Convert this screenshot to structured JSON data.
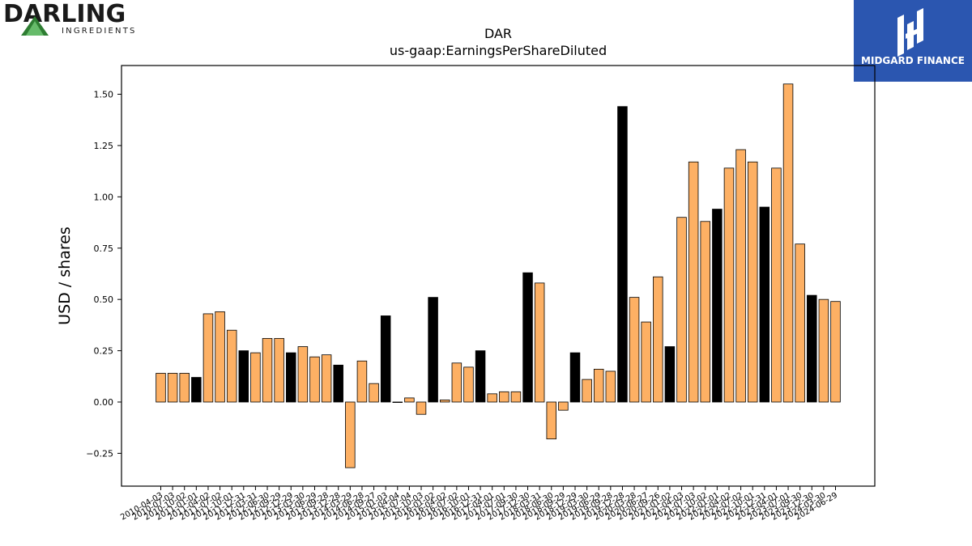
{
  "header": {
    "company_logo_text": "DARLING",
    "company_logo_subtext": "INGREDIENTS",
    "publisher_logo_text": "MIDGARD FINANCE"
  },
  "colors": {
    "bar_default": "#FDB064",
    "bar_highlight": "#000000",
    "publisher_brand": "#2B56B0",
    "logo_green": "#2E7D32"
  },
  "chart_data": {
    "type": "bar",
    "title": "DAR",
    "subtitle": "us-gaap:EarningsPerShareDiluted",
    "xlabel": "",
    "ylabel": "USD / shares",
    "ylim": [
      -0.41,
      1.64
    ],
    "yticks": [
      -0.25,
      0.0,
      0.25,
      0.5,
      0.75,
      1.0,
      1.25,
      1.5
    ],
    "ytick_labels": [
      "−0.25",
      "0.00",
      "0.25",
      "0.50",
      "0.75",
      "1.00",
      "1.25",
      "1.50"
    ],
    "grid": false,
    "categories": [
      "2010-04-03",
      "2010-07-03",
      "2010-10-02",
      "2011-01-01",
      "2011-04-02",
      "2011-07-02",
      "2011-10-01",
      "2011-12-31",
      "2012-03-31",
      "2012-06-30",
      "2012-09-29",
      "2012-12-29",
      "2013-03-30",
      "2013-06-29",
      "2013-09-28",
      "2013-12-28",
      "2014-03-29",
      "2014-06-28",
      "2014-09-27",
      "2015-01-03",
      "2015-04-04",
      "2015-07-04",
      "2015-10-03",
      "2016-01-02",
      "2016-04-02",
      "2016-07-02",
      "2016-10-01",
      "2016-12-31",
      "2017-04-01",
      "2017-07-01",
      "2017-09-30",
      "2017-12-30",
      "2018-03-31",
      "2018-06-30",
      "2018-09-29",
      "2018-12-29",
      "2019-03-30",
      "2019-06-29",
      "2019-09-28",
      "2019-12-28",
      "2020-03-28",
      "2020-06-27",
      "2020-09-26",
      "2021-01-02",
      "2021-04-03",
      "2021-07-03",
      "2021-10-02",
      "2022-01-01",
      "2022-04-02",
      "2022-07-02",
      "2022-10-01",
      "2022-12-31",
      "2023-04-01",
      "2023-07-01",
      "2023-09-30",
      "2023-12-30",
      "2024-03-30",
      "2024-06-29"
    ],
    "values": [
      0.14,
      0.14,
      0.14,
      0.12,
      0.43,
      0.44,
      0.35,
      0.25,
      0.24,
      0.31,
      0.31,
      0.24,
      0.27,
      0.22,
      0.23,
      0.18,
      -0.32,
      0.2,
      0.09,
      0.42,
      0.0,
      0.02,
      -0.06,
      0.51,
      0.01,
      0.19,
      0.17,
      0.25,
      0.04,
      0.05,
      0.05,
      0.63,
      0.58,
      -0.18,
      -0.04,
      0.24,
      0.11,
      0.16,
      0.15,
      1.44,
      0.51,
      0.39,
      0.61,
      0.27,
      0.9,
      1.17,
      0.88,
      0.94,
      1.14,
      1.23,
      1.17,
      0.95,
      1.14,
      1.55,
      0.77,
      0.52,
      0.5,
      0.49
    ],
    "highlighted": [
      3,
      7,
      11,
      15,
      19,
      23,
      27,
      31,
      35,
      39,
      43,
      47,
      51,
      55
    ]
  }
}
